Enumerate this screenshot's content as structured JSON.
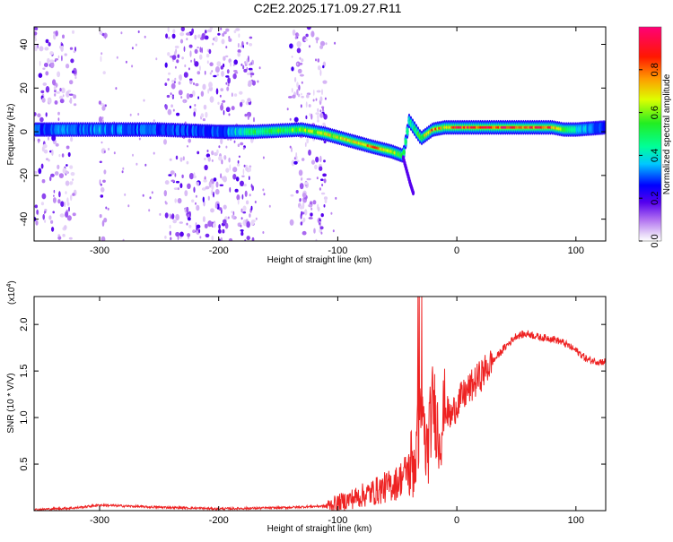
{
  "title": "C2E2.2025.171.09.27.R11",
  "chart_data": [
    {
      "type": "heatmap",
      "xlabel": "Height of straight line (km)",
      "ylabel": "Frequency (Hz)",
      "xlim": [
        -355,
        125
      ],
      "ylim": [
        -50,
        48
      ],
      "xticks": [
        -300,
        -200,
        -100,
        0,
        100
      ],
      "yticks": [
        -40,
        -20,
        0,
        20,
        40
      ],
      "grid": false,
      "colorbar": {
        "label": "Normalized spectral amplitude",
        "range": [
          0,
          1
        ],
        "ticks": [
          0.0,
          0.2,
          0.4,
          0.6,
          0.8
        ],
        "colormap": "rainbow (white, purple, blue, cyan, green, yellow, orange, red, magenta)"
      },
      "ridge": {
        "description": "main spectral line vs height",
        "x": [
          -355,
          -300,
          -250,
          -200,
          -170,
          -130,
          -110,
          -90,
          -70,
          -55,
          -45,
          -40,
          -30,
          -20,
          -10,
          0,
          40,
          80,
          90,
          100,
          125
        ],
        "frequency": [
          1,
          1,
          1,
          0,
          0,
          1,
          -1,
          -4,
          -7,
          -9,
          -11,
          5,
          -3,
          1,
          2,
          2,
          2,
          2,
          1,
          1,
          2
        ],
        "peak_amplitude": [
          0.3,
          0.35,
          0.3,
          0.3,
          0.5,
          0.6,
          0.7,
          0.7,
          0.8,
          0.7,
          0.5,
          0.4,
          0.6,
          0.85,
          0.7,
          0.95,
          0.9,
          0.9,
          0.6,
          0.4,
          0.3
        ]
      },
      "branch": {
        "description": "descending tail near -40 km",
        "x": [
          -45,
          -42,
          -39,
          -36
        ],
        "frequency": [
          -12,
          -18,
          -24,
          -29
        ]
      },
      "noise_bands_km": [
        [
          -355,
          -320
        ],
        [
          -300,
          -295
        ],
        [
          -245,
          -170
        ],
        [
          -140,
          -110
        ]
      ]
    },
    {
      "type": "line",
      "xlabel": "Height of straight line (km)",
      "ylabel": "SNR (10 * V/V)",
      "y_multiplier": "(x10",
      "y_multiplier_exp": "4",
      "xlim": [
        -355,
        125
      ],
      "ylim": [
        0,
        2.3
      ],
      "xticks": [
        -300,
        -200,
        -100,
        0,
        100
      ],
      "yticks": [
        0.5,
        1.0,
        1.5,
        2.0
      ],
      "grid": false,
      "series": [
        {
          "color": "#ee2222",
          "x": [
            -355,
            -320,
            -300,
            -260,
            -200,
            -150,
            -110,
            -90,
            -70,
            -50,
            -35,
            -30,
            -25,
            -20,
            -15,
            -10,
            -5,
            0,
            10,
            20,
            30,
            40,
            50,
            60,
            70,
            80,
            90,
            100,
            110,
            120,
            125
          ],
          "y": [
            0.01,
            0.03,
            0.06,
            0.04,
            0.02,
            0.03,
            0.05,
            0.12,
            0.2,
            0.3,
            0.55,
            1.0,
            0.6,
            1.2,
            0.8,
            1.1,
            1.0,
            1.15,
            1.3,
            1.45,
            1.6,
            1.75,
            1.88,
            1.9,
            1.86,
            1.85,
            1.8,
            1.72,
            1.62,
            1.6,
            1.6
          ]
        }
      ]
    }
  ]
}
